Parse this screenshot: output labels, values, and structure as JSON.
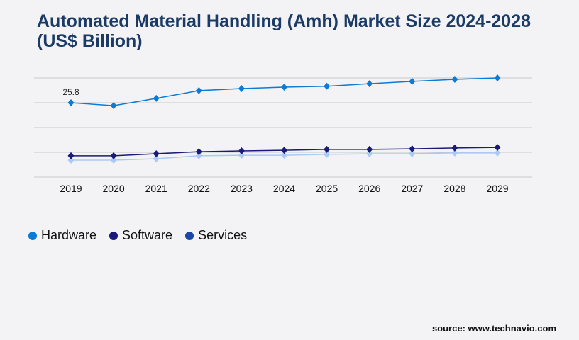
{
  "title": "Automated Material Handling (Amh) Market Size 2024-2028 (US$ Billion)",
  "source": "source: www.technavio.com",
  "chart_data": {
    "type": "line",
    "title": "Automated Material Handling (Amh) Market Size 2024-2028 (US$ Billion)",
    "categories": [
      "2019",
      "2020",
      "2021",
      "2022",
      "2023",
      "2024",
      "2025",
      "2026",
      "2027",
      "2028",
      "2029"
    ],
    "ylim": [
      0,
      34.4
    ],
    "grid": true,
    "legend_position": "bottom-left",
    "annotations": [
      {
        "category": "2019",
        "series": "Hardware",
        "text": "25.8"
      }
    ],
    "series": [
      {
        "name": "Hardware",
        "color": "#0a7bd6",
        "legend_color": "#0a7bd6",
        "values": [
          25.8,
          24.8,
          27.3,
          30.0,
          30.7,
          31.2,
          31.5,
          32.4,
          33.2,
          33.9,
          34.4
        ]
      },
      {
        "name": "Software",
        "color": "#1a1a7a",
        "legend_color": "#1a1a7a",
        "values": [
          7.4,
          7.4,
          8.1,
          8.8,
          9.1,
          9.3,
          9.6,
          9.6,
          9.8,
          10.1,
          10.3
        ]
      },
      {
        "name": "Services",
        "color": "#a9c9f7",
        "legend_color": "#1b47a6",
        "values": [
          5.9,
          5.9,
          6.4,
          7.4,
          7.6,
          7.6,
          7.9,
          8.1,
          8.1,
          8.4,
          8.4
        ]
      }
    ]
  }
}
